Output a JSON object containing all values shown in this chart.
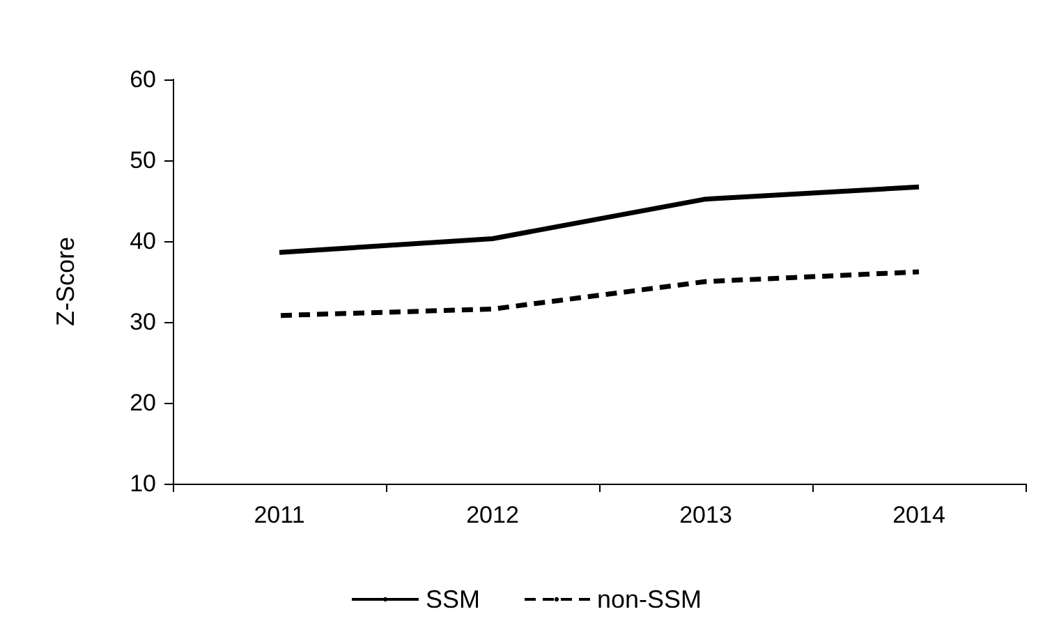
{
  "chart_data": {
    "type": "line",
    "ylabel": "Z-Score",
    "categories": [
      "2011",
      "2012",
      "2013",
      "2014"
    ],
    "series": [
      {
        "name": "SSM",
        "color": "#000000",
        "line_style": "solid",
        "values": [
          38.6,
          40.3,
          45.2,
          46.7
        ]
      },
      {
        "name": "non-SSM",
        "color": "#000000",
        "line_style": "dashed",
        "values": [
          30.8,
          31.6,
          35.0,
          36.2
        ]
      }
    ],
    "ylim": [
      10,
      60
    ],
    "yticks": [
      10,
      20,
      30,
      40,
      50,
      60
    ],
    "grid": false,
    "legend": "bottom",
    "marker": "none"
  }
}
